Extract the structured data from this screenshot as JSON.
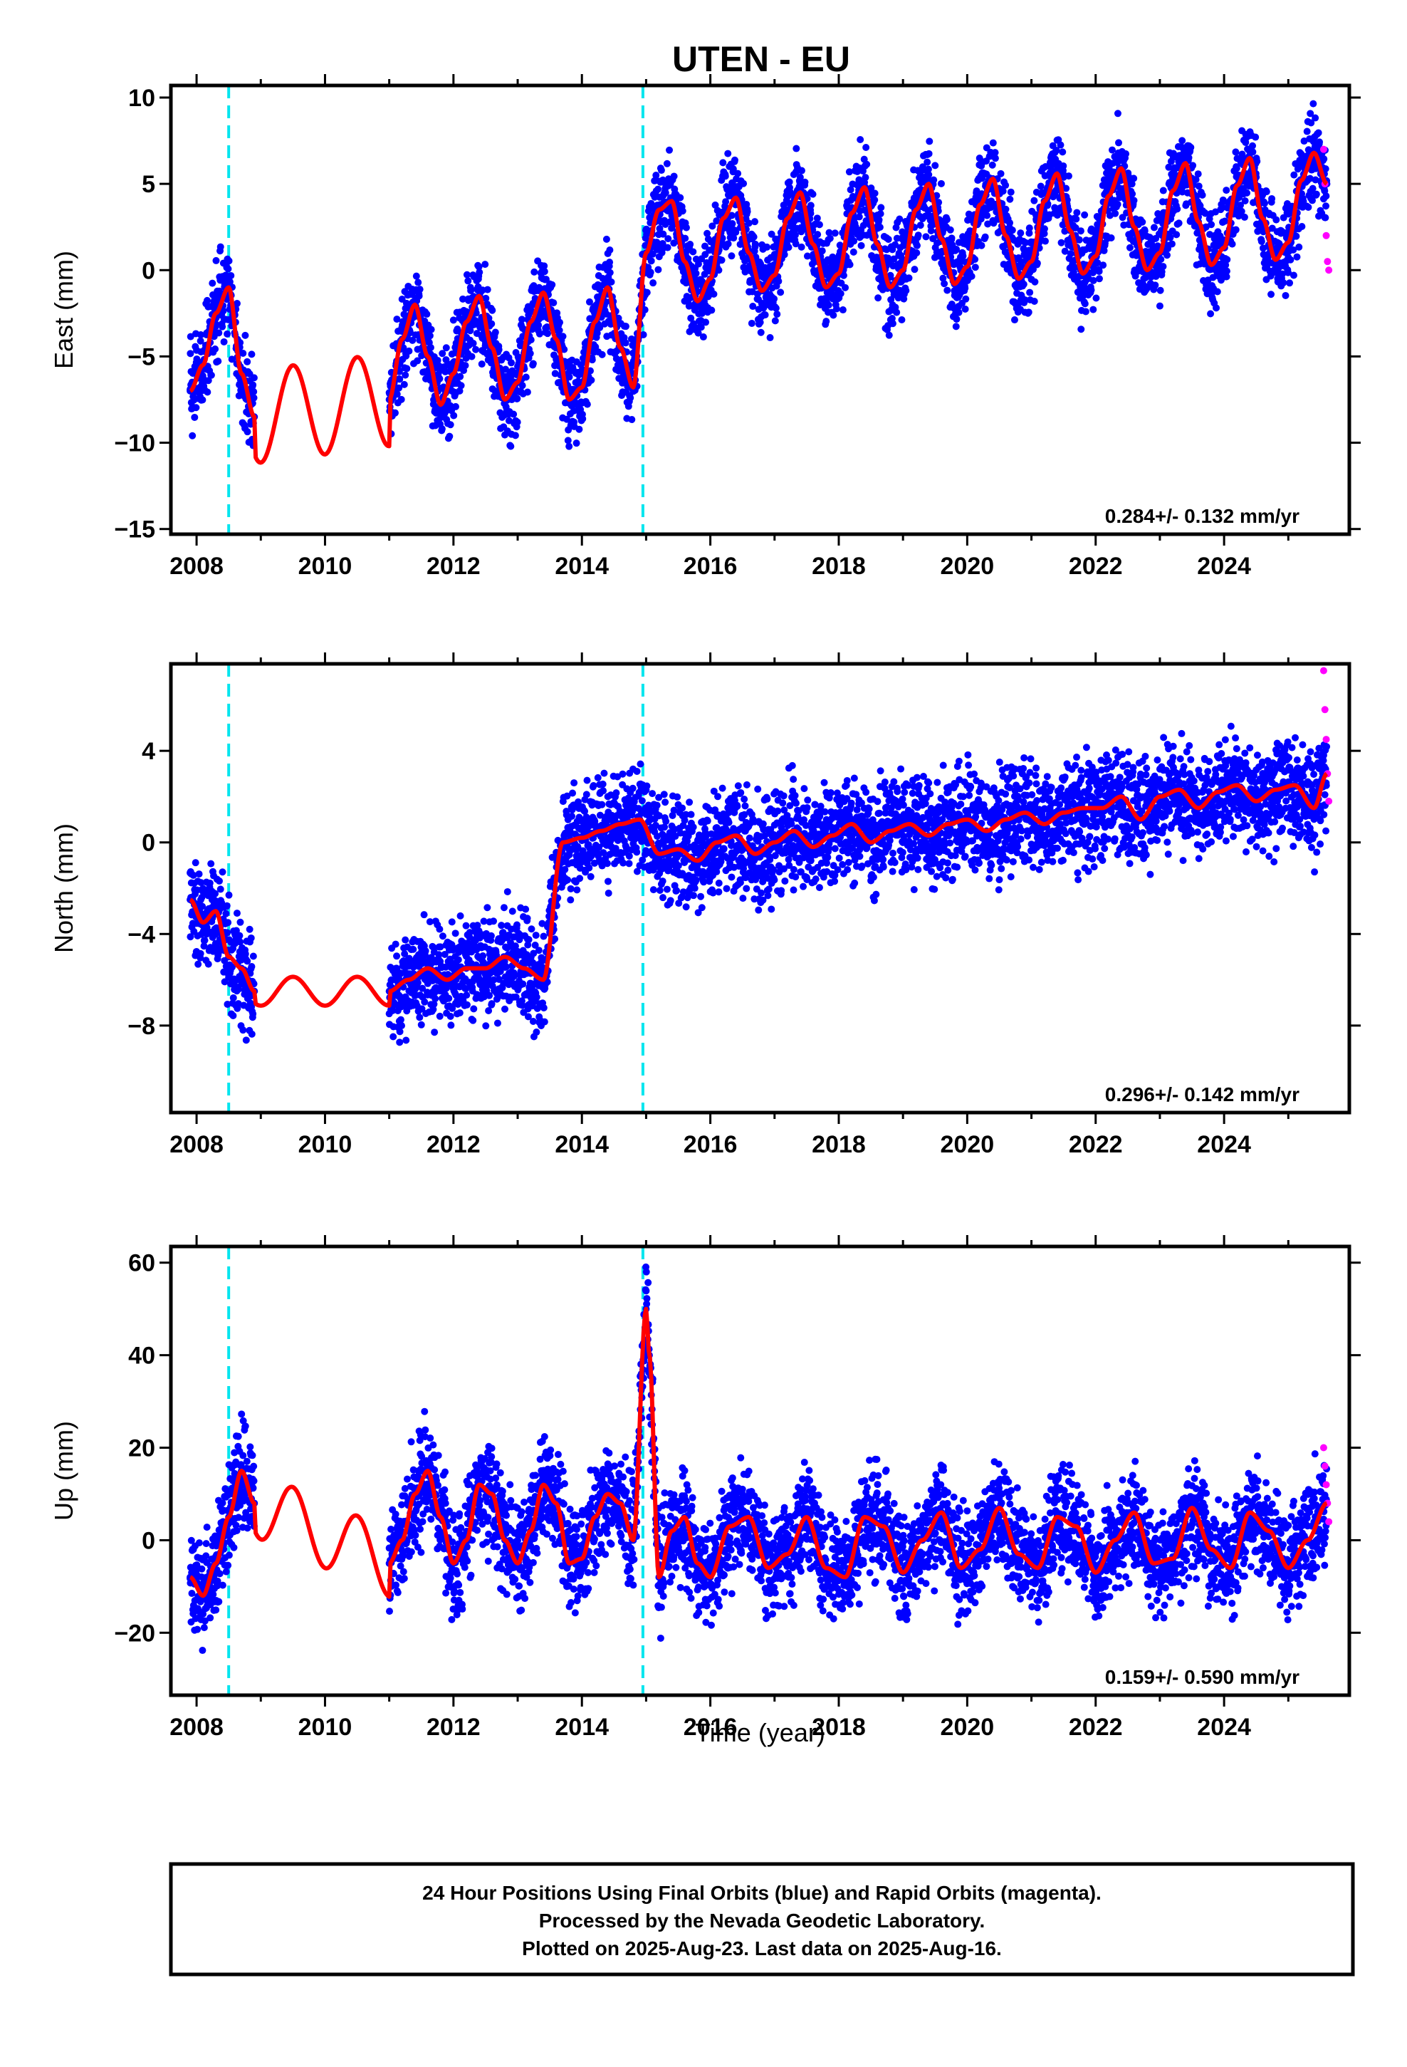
{
  "title": "UTEN - EU",
  "colors": {
    "final_orbits": "#0000ff",
    "rapid_orbits": "#ff00ff",
    "model": "#ff0000",
    "offsets": "#00e5ee",
    "frame": "#000000"
  },
  "chart_data": [
    {
      "type": "scatter",
      "ylabel": "East (mm)",
      "xlabel": "",
      "xlim": [
        2007.6,
        2025.95
      ],
      "ylim": [
        -15.3,
        10.7
      ],
      "xticks": [
        2008,
        2010,
        2012,
        2014,
        2016,
        2018,
        2020,
        2022,
        2024
      ],
      "yticks": [
        10,
        5,
        0,
        -5,
        -10,
        -15
      ],
      "grid": false,
      "rate_label": "0.284+/- 0.132 mm/yr",
      "offset_epochs": [
        2008.5,
        2014.95
      ],
      "series": [
        {
          "name": "Final Orbits (blue)",
          "color": "#0000ff",
          "x": [
            2007.9,
            2008.1,
            2008.3,
            2008.5,
            2008.7,
            2008.9,
            2011.0,
            2011.2,
            2011.4,
            2011.6,
            2011.8,
            2012.0,
            2012.2,
            2012.4,
            2012.6,
            2012.8,
            2013.0,
            2013.2,
            2013.4,
            2013.6,
            2013.8,
            2014.0,
            2014.2,
            2014.4,
            2014.6,
            2014.8,
            2015.0,
            2015.2,
            2015.4,
            2015.6,
            2015.8,
            2016.0,
            2016.2,
            2016.4,
            2016.6,
            2016.8,
            2017.0,
            2017.2,
            2017.4,
            2017.6,
            2017.8,
            2018.0,
            2018.2,
            2018.4,
            2018.6,
            2018.8,
            2019.0,
            2019.2,
            2019.4,
            2019.6,
            2019.8,
            2020.0,
            2020.2,
            2020.4,
            2020.6,
            2020.8,
            2021.0,
            2021.2,
            2021.4,
            2021.6,
            2021.8,
            2022.0,
            2022.2,
            2022.4,
            2022.6,
            2022.8,
            2023.0,
            2023.2,
            2023.4,
            2023.6,
            2023.8,
            2024.0,
            2024.2,
            2024.4,
            2024.6,
            2024.8,
            2025.0,
            2025.2,
            2025.4,
            2025.6
          ],
          "y": [
            -7.0,
            -5.5,
            -2.5,
            -1.0,
            -6.0,
            -8.5,
            -7.5,
            -4.0,
            -2.0,
            -5.0,
            -7.8,
            -6.0,
            -3.0,
            -1.5,
            -4.5,
            -7.5,
            -6.5,
            -3.0,
            -1.3,
            -4.0,
            -7.5,
            -6.8,
            -3.0,
            -1.0,
            -4.5,
            -6.8,
            1.0,
            3.5,
            4.0,
            0.5,
            -1.8,
            -0.5,
            3.0,
            4.2,
            1.0,
            -1.2,
            -0.3,
            3.0,
            4.5,
            1.5,
            -1.0,
            -0.2,
            3.3,
            4.8,
            1.5,
            -1.0,
            0.0,
            3.5,
            5.0,
            1.8,
            -0.8,
            0.2,
            3.8,
            5.3,
            2.0,
            -0.5,
            0.5,
            4.0,
            5.6,
            2.3,
            -0.2,
            0.8,
            4.3,
            5.9,
            2.5,
            0.0,
            1.0,
            4.6,
            6.2,
            2.8,
            0.3,
            1.3,
            4.9,
            6.5,
            3.0,
            0.6,
            1.6,
            5.2,
            6.8,
            5.0
          ]
        },
        {
          "name": "Rapid Orbits (magenta)",
          "color": "#ff00ff",
          "x": [
            2025.55,
            2025.57,
            2025.59,
            2025.61,
            2025.63
          ],
          "y": [
            7.0,
            5.0,
            2.0,
            0.5,
            0.0
          ]
        }
      ]
    },
    {
      "type": "scatter",
      "ylabel": "North (mm)",
      "xlabel": "",
      "xlim": [
        2007.6,
        2025.95
      ],
      "ylim": [
        -11.8,
        7.8
      ],
      "xticks": [
        2008,
        2010,
        2012,
        2014,
        2016,
        2018,
        2020,
        2022,
        2024
      ],
      "yticks": [
        4,
        0,
        -4,
        -8
      ],
      "grid": false,
      "rate_label": "0.296+/- 0.142 mm/yr",
      "offset_epochs": [
        2008.5,
        2014.95
      ],
      "series": [
        {
          "name": "Final Orbits (blue)",
          "color": "#0000ff",
          "x": [
            2007.9,
            2008.1,
            2008.3,
            2008.5,
            2008.7,
            2008.9,
            2011.0,
            2011.3,
            2011.6,
            2011.9,
            2012.2,
            2012.5,
            2012.8,
            2013.1,
            2013.4,
            2013.7,
            2014.0,
            2014.3,
            2014.6,
            2014.9,
            2015.2,
            2015.5,
            2015.8,
            2016.1,
            2016.4,
            2016.7,
            2017.0,
            2017.3,
            2017.6,
            2017.9,
            2018.2,
            2018.5,
            2018.8,
            2019.1,
            2019.4,
            2019.7,
            2020.0,
            2020.3,
            2020.6,
            2020.9,
            2021.2,
            2021.5,
            2021.8,
            2022.1,
            2022.4,
            2022.7,
            2023.0,
            2023.3,
            2023.6,
            2023.9,
            2024.2,
            2024.5,
            2024.8,
            2025.1,
            2025.4,
            2025.6
          ],
          "y": [
            -2.5,
            -3.5,
            -3.0,
            -5.0,
            -5.5,
            -6.5,
            -6.5,
            -6.0,
            -5.5,
            -6.0,
            -5.5,
            -5.5,
            -5.0,
            -5.5,
            -6.0,
            0.0,
            0.2,
            0.5,
            0.8,
            1.0,
            -0.5,
            -0.3,
            -0.8,
            0.0,
            0.3,
            -0.5,
            0.0,
            0.5,
            -0.2,
            0.3,
            0.8,
            0.0,
            0.5,
            0.8,
            0.3,
            0.8,
            1.0,
            0.5,
            1.0,
            1.3,
            0.8,
            1.3,
            1.5,
            1.5,
            2.0,
            1.0,
            2.0,
            2.3,
            1.5,
            2.2,
            2.5,
            1.8,
            2.3,
            2.5,
            1.5,
            3.0
          ]
        },
        {
          "name": "Rapid Orbits (magenta)",
          "color": "#ff00ff",
          "x": [
            2025.55,
            2025.57,
            2025.59,
            2025.61,
            2025.63
          ],
          "y": [
            7.5,
            5.8,
            4.5,
            3.0,
            1.8
          ]
        }
      ]
    },
    {
      "type": "scatter",
      "ylabel": "Up (mm)",
      "xlabel": "Time (year)",
      "xlim": [
        2007.6,
        2025.95
      ],
      "ylim": [
        -33.5,
        63.5
      ],
      "xticks": [
        2008,
        2010,
        2012,
        2014,
        2016,
        2018,
        2020,
        2022,
        2024
      ],
      "yticks": [
        60,
        40,
        20,
        0,
        -20
      ],
      "grid": false,
      "rate_label": "0.159+/- 0.590 mm/yr",
      "offset_epochs": [
        2008.5,
        2014.95
      ],
      "series": [
        {
          "name": "Final Orbits (blue)",
          "color": "#0000ff",
          "x": [
            2007.9,
            2008.1,
            2008.3,
            2008.5,
            2008.7,
            2008.9,
            2011.0,
            2011.2,
            2011.4,
            2011.6,
            2011.8,
            2012.0,
            2012.2,
            2012.4,
            2012.6,
            2012.8,
            2013.0,
            2013.2,
            2013.4,
            2013.6,
            2013.8,
            2014.0,
            2014.2,
            2014.4,
            2014.6,
            2014.8,
            2015.0,
            2015.05,
            2015.2,
            2015.4,
            2015.6,
            2015.8,
            2016.0,
            2016.3,
            2016.6,
            2016.9,
            2017.2,
            2017.5,
            2017.8,
            2018.1,
            2018.4,
            2018.7,
            2019.0,
            2019.3,
            2019.6,
            2019.9,
            2020.2,
            2020.5,
            2020.8,
            2021.1,
            2021.4,
            2021.7,
            2022.0,
            2022.3,
            2022.6,
            2022.9,
            2023.2,
            2023.5,
            2023.8,
            2024.1,
            2024.4,
            2024.7,
            2025.0,
            2025.3,
            2025.6
          ],
          "y": [
            -8.0,
            -12.0,
            -5.0,
            5.0,
            15.0,
            8.0,
            -5.0,
            0.0,
            10.0,
            15.0,
            5.0,
            -5.0,
            0.0,
            12.0,
            10.0,
            0.0,
            -5.0,
            2.0,
            12.0,
            8.0,
            -5.0,
            -4.0,
            5.0,
            10.0,
            8.0,
            0.0,
            50.0,
            40.0,
            -8.0,
            2.0,
            5.0,
            -5.0,
            -8.0,
            3.0,
            5.0,
            -6.0,
            -3.0,
            5.0,
            -6.0,
            -8.0,
            5.0,
            3.0,
            -7.0,
            0.0,
            6.0,
            -6.0,
            -2.0,
            7.0,
            -3.0,
            -6.0,
            5.0,
            3.0,
            -7.0,
            0.0,
            6.0,
            -5.0,
            -4.0,
            7.0,
            -2.0,
            -6.0,
            6.0,
            2.0,
            -6.0,
            0.0,
            8.0
          ]
        },
        {
          "name": "Rapid Orbits (magenta)",
          "color": "#ff00ff",
          "x": [
            2025.55,
            2025.57,
            2025.59,
            2025.61,
            2025.63
          ],
          "y": [
            20.0,
            16.0,
            12.0,
            8.0,
            4.0
          ]
        }
      ]
    }
  ],
  "footer": {
    "line1": "24 Hour Positions Using Final Orbits (blue) and Rapid Orbits (magenta).",
    "line2": "Processed by the Nevada Geodetic Laboratory.",
    "line3": "Plotted on 2025-Aug-23. Last data on 2025-Aug-16."
  }
}
